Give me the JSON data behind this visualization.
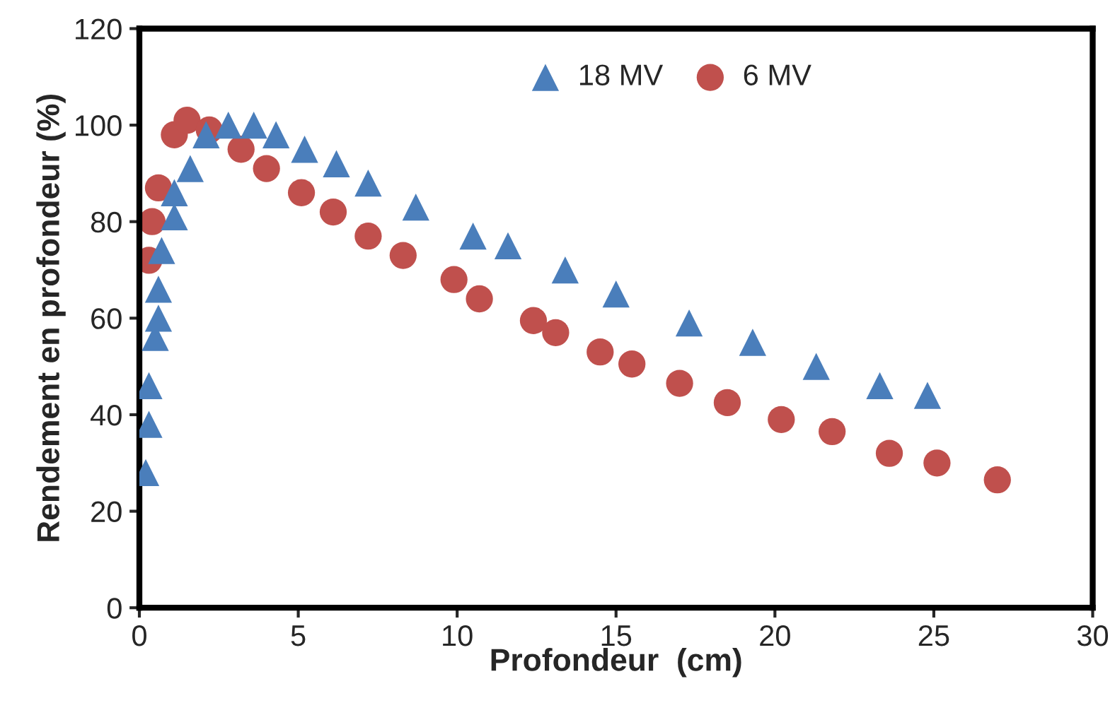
{
  "chart_data": {
    "type": "scatter",
    "xlabel": "Profondeur  (cm)",
    "ylabel": "Rendement en profondeur (%)",
    "xlim": [
      0,
      30
    ],
    "xticks": [
      0,
      5,
      10,
      15,
      20,
      25,
      30
    ],
    "ylim": [
      0,
      120
    ],
    "yticks": [
      0,
      20,
      40,
      60,
      80,
      100,
      120
    ],
    "grid": false,
    "legend": "top",
    "series": [
      {
        "name": "18 MV",
        "color": "#4a7ebb",
        "marker": "triangle",
        "x": [
          0.2,
          0.3,
          0.3,
          0.5,
          0.6,
          0.6,
          0.7,
          1.1,
          1.1,
          1.6,
          2.1,
          2.8,
          3.6,
          4.3,
          5.2,
          6.2,
          7.2,
          8.7,
          10.5,
          11.6,
          13.4,
          15.0,
          17.3,
          19.3,
          21.3,
          23.3,
          24.8
        ],
        "values": [
          28,
          38,
          46,
          56,
          60,
          66,
          74,
          81,
          86,
          91,
          98,
          100,
          100,
          98,
          95,
          92,
          88,
          83,
          77,
          75,
          70,
          65,
          59,
          55,
          50,
          46,
          44
        ]
      },
      {
        "name": "6 MV",
        "color": "#c0504d",
        "marker": "circle",
        "x": [
          0.3,
          0.4,
          0.6,
          1.1,
          1.5,
          2.2,
          3.2,
          4.0,
          5.1,
          6.1,
          7.2,
          8.3,
          9.9,
          10.7,
          12.4,
          13.1,
          14.5,
          15.5,
          17.0,
          18.5,
          20.2,
          21.8,
          23.6,
          25.1,
          27.0
        ],
        "values": [
          72,
          80,
          87,
          98,
          101,
          99,
          95,
          91,
          86,
          82,
          77,
          73,
          68,
          64,
          59.5,
          57,
          53,
          50.5,
          46.5,
          42.5,
          39,
          36.5,
          32,
          30,
          26.5
        ]
      }
    ]
  }
}
